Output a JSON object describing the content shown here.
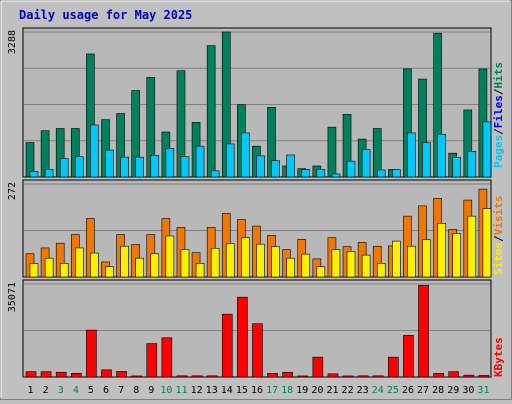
{
  "chart_data": [
    {
      "type": "bar",
      "title": "Daily usage for May 2025",
      "ymax_label": "3288",
      "ylim": [
        0,
        3288
      ],
      "right_label_parts": [
        "Pages",
        "/",
        "Files",
        "/",
        "Hits"
      ],
      "colors": {
        "Hits": "#00805c",
        "Files": "#0000ff",
        "Pages": "#00c8f8",
        "slash": "#000000"
      },
      "categories": [
        "1",
        "2",
        "3",
        "4",
        "5",
        "6",
        "7",
        "8",
        "9",
        "10",
        "11",
        "12",
        "13",
        "14",
        "15",
        "16",
        "17",
        "18",
        "19",
        "20",
        "21",
        "22",
        "23",
        "24",
        "25",
        "26",
        "27",
        "28",
        "29",
        "30",
        "31"
      ],
      "weekend_days": [
        "3",
        "4",
        "10",
        "11",
        "17",
        "18",
        "24",
        "25",
        "31"
      ],
      "series": [
        {
          "name": "Hits",
          "values": [
            780,
            1050,
            1100,
            1100,
            2790,
            1300,
            1440,
            1960,
            2260,
            1020,
            2410,
            1240,
            2980,
            3288,
            1640,
            700,
            1580,
            250,
            190,
            250,
            1130,
            1420,
            860,
            1100,
            170,
            2450,
            2220,
            3260,
            540,
            1520,
            2450
          ]
        },
        {
          "name": "Pages",
          "values": [
            130,
            170,
            420,
            460,
            1180,
            610,
            450,
            450,
            490,
            650,
            460,
            700,
            140,
            750,
            1000,
            480,
            370,
            500,
            170,
            170,
            70,
            360,
            620,
            160,
            170,
            1000,
            780,
            970,
            440,
            580,
            1250
          ]
        }
      ]
    },
    {
      "type": "bar",
      "ymax_label": "272",
      "ylim": [
        0,
        272
      ],
      "right_label_parts": [
        "Sites",
        "/",
        "Visits"
      ],
      "colors": {
        "Visits": "#f07800",
        "Sites": "#fff000",
        "slash": "#000000"
      },
      "categories": [
        "1",
        "2",
        "3",
        "4",
        "5",
        "6",
        "7",
        "8",
        "9",
        "10",
        "11",
        "12",
        "13",
        "14",
        "15",
        "16",
        "17",
        "18",
        "19",
        "20",
        "21",
        "22",
        "23",
        "24",
        "25",
        "26",
        "27",
        "28",
        "29",
        "30",
        "31"
      ],
      "series": [
        {
          "name": "Visits",
          "values": [
            68,
            85,
            99,
            124,
            171,
            44,
            124,
            95,
            124,
            171,
            145,
            71,
            145,
            186,
            168,
            149,
            122,
            80,
            110,
            53,
            115,
            89,
            101,
            90,
            91,
            178,
            208,
            230,
            139,
            225,
            257
          ]
        },
        {
          "name": "Sites",
          "values": [
            40,
            55,
            40,
            85,
            70,
            30,
            90,
            55,
            68,
            120,
            80,
            40,
            84,
            98,
            115,
            96,
            89,
            55,
            67,
            30,
            80,
            75,
            64,
            40,
            105,
            90,
            109,
            157,
            127,
            178,
            200
          ]
        }
      ]
    },
    {
      "type": "bar",
      "ymax_label": "35071",
      "ylim": [
        0,
        35071
      ],
      "right_label_parts": [
        "KBytes"
      ],
      "colors": {
        "KBytes": "#ff0000"
      },
      "categories": [
        "1",
        "2",
        "3",
        "4",
        "5",
        "6",
        "7",
        "8",
        "9",
        "10",
        "11",
        "12",
        "13",
        "14",
        "15",
        "16",
        "17",
        "18",
        "19",
        "20",
        "21",
        "22",
        "23",
        "24",
        "25",
        "26",
        "27",
        "28",
        "29",
        "30",
        "31"
      ],
      "series": [
        {
          "name": "KBytes",
          "values": [
            2000,
            2000,
            1800,
            1400,
            17700,
            2700,
            2100,
            400,
            12600,
            14800,
            450,
            450,
            450,
            23700,
            30100,
            20100,
            1400,
            1800,
            400,
            7500,
            1200,
            400,
            450,
            450,
            7500,
            15700,
            34600,
            1400,
            2000,
            700,
            600
          ]
        }
      ]
    }
  ]
}
